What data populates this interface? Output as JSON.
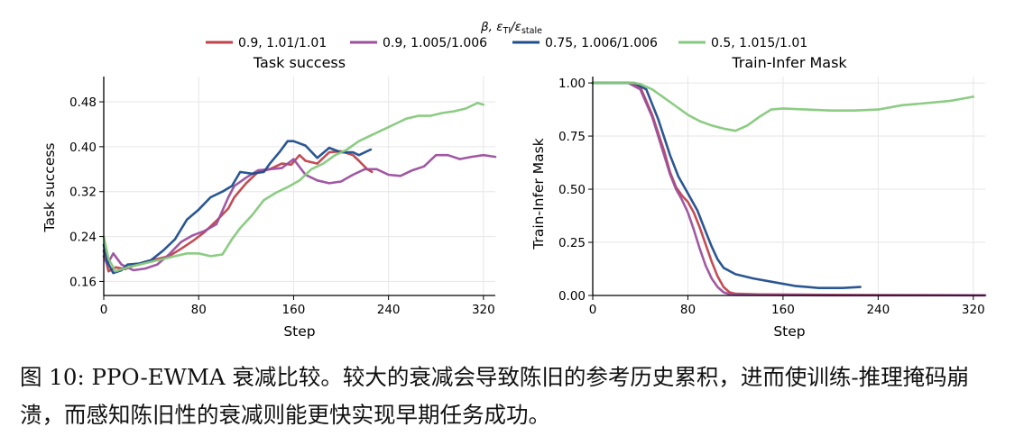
{
  "legend": {
    "title_parts": [
      "β,  ε",
      "TI",
      "/ε",
      "stale"
    ],
    "entries": [
      {
        "label": "0.9,  1.01/1.01",
        "color": "#c0424a"
      },
      {
        "label": "0.9,  1.005/1.006",
        "color": "#9b4f9d"
      },
      {
        "label": "0.75,  1.006/1.006",
        "color": "#1f4e8c"
      },
      {
        "label": "0.5,  1.015/1.01",
        "color": "#86c97c"
      }
    ]
  },
  "caption": "图 10: PPO-EWMA 衰减比较。较大的衰减会导致陈旧的参考历史累积，进而使训练-推理掩码崩溃，而感知陈旧性的衰减则能更快实现早期任务成功。",
  "chart_data": [
    {
      "type": "line",
      "title": "Task success",
      "xlabel": "Step",
      "ylabel": "Task success",
      "xlim": [
        0,
        330
      ],
      "ylim": [
        0.135,
        0.525
      ],
      "xticks": [
        "0",
        "80",
        "160",
        "240",
        "320"
      ],
      "xtick_values": [
        0,
        80,
        160,
        240,
        320
      ],
      "yticks": [
        "0.16",
        "0.24",
        "0.32",
        "0.40",
        "0.48"
      ],
      "ytick_values": [
        0.16,
        0.24,
        0.32,
        0.4,
        0.48
      ],
      "grid": true,
      "series": [
        {
          "name": "0.9,  1.01/1.01",
          "color": "#c0424a",
          "x": [
            0,
            4,
            10,
            18,
            25,
            35,
            45,
            55,
            65,
            75,
            85,
            95,
            105,
            110,
            120,
            130,
            140,
            150,
            158,
            165,
            170,
            180,
            190,
            200,
            210,
            215,
            222,
            226
          ],
          "y": [
            0.215,
            0.178,
            0.185,
            0.182,
            0.188,
            0.195,
            0.2,
            0.205,
            0.218,
            0.232,
            0.248,
            0.268,
            0.29,
            0.31,
            0.335,
            0.355,
            0.36,
            0.37,
            0.368,
            0.385,
            0.375,
            0.37,
            0.39,
            0.392,
            0.385,
            0.375,
            0.36,
            0.355
          ]
        },
        {
          "name": "0.9,  1.005/1.006",
          "color": "#9b4f9d",
          "x": [
            0,
            3,
            8,
            15,
            25,
            35,
            45,
            55,
            65,
            75,
            85,
            95,
            105,
            110,
            120,
            130,
            140,
            150,
            160,
            170,
            180,
            190,
            200,
            210,
            220,
            230,
            240,
            250,
            260,
            270,
            280,
            290,
            300,
            310,
            320,
            330
          ],
          "y": [
            0.205,
            0.19,
            0.21,
            0.19,
            0.18,
            0.183,
            0.19,
            0.208,
            0.23,
            0.242,
            0.25,
            0.262,
            0.31,
            0.33,
            0.345,
            0.358,
            0.36,
            0.362,
            0.378,
            0.35,
            0.34,
            0.335,
            0.338,
            0.35,
            0.36,
            0.36,
            0.35,
            0.348,
            0.358,
            0.365,
            0.385,
            0.385,
            0.378,
            0.382,
            0.385,
            0.382
          ]
        },
        {
          "name": "0.75,  1.006/1.006",
          "color": "#1f4e8c",
          "x": [
            0,
            3,
            8,
            15,
            20,
            30,
            40,
            50,
            60,
            70,
            80,
            90,
            100,
            108,
            115,
            125,
            135,
            140,
            148,
            155,
            160,
            170,
            180,
            190,
            200,
            210,
            215,
            225
          ],
          "y": [
            0.225,
            0.195,
            0.175,
            0.18,
            0.19,
            0.192,
            0.198,
            0.215,
            0.235,
            0.27,
            0.288,
            0.31,
            0.32,
            0.33,
            0.355,
            0.352,
            0.355,
            0.37,
            0.39,
            0.41,
            0.41,
            0.402,
            0.38,
            0.398,
            0.39,
            0.39,
            0.385,
            0.395
          ]
        },
        {
          "name": "0.5,  1.015/1.01",
          "color": "#86c97c",
          "x": [
            0,
            4,
            10,
            20,
            30,
            40,
            50,
            60,
            70,
            80,
            90,
            100,
            108,
            115,
            125,
            135,
            145,
            155,
            165,
            175,
            185,
            195,
            205,
            215,
            225,
            235,
            245,
            255,
            265,
            275,
            285,
            295,
            305,
            315,
            320
          ],
          "y": [
            0.24,
            0.2,
            0.178,
            0.185,
            0.19,
            0.195,
            0.2,
            0.205,
            0.21,
            0.21,
            0.205,
            0.208,
            0.235,
            0.255,
            0.278,
            0.305,
            0.318,
            0.328,
            0.34,
            0.36,
            0.37,
            0.385,
            0.395,
            0.41,
            0.42,
            0.43,
            0.44,
            0.45,
            0.455,
            0.455,
            0.46,
            0.463,
            0.468,
            0.478,
            0.475
          ]
        }
      ]
    },
    {
      "type": "line",
      "title": "Train-Infer Mask",
      "xlabel": "Step",
      "ylabel": "Train-Infer Mask",
      "xlim": [
        0,
        330
      ],
      "ylim": [
        0,
        1.03
      ],
      "xticks": [
        "0",
        "80",
        "160",
        "240",
        "320"
      ],
      "xtick_values": [
        0,
        80,
        160,
        240,
        320
      ],
      "yticks": [
        "0.00",
        "0.25",
        "0.50",
        "0.75",
        "1.00"
      ],
      "ytick_values": [
        0.0,
        0.25,
        0.5,
        0.75,
        1.0
      ],
      "grid": true,
      "series": [
        {
          "name": "0.9,  1.01/1.01",
          "color": "#c0424a",
          "x": [
            0,
            30,
            40,
            50,
            60,
            65,
            70,
            75,
            80,
            85,
            90,
            95,
            100,
            105,
            110,
            115,
            120,
            140,
            200,
            260,
            330
          ],
          "y": [
            1.0,
            1.0,
            0.98,
            0.85,
            0.68,
            0.58,
            0.51,
            0.47,
            0.44,
            0.39,
            0.32,
            0.24,
            0.16,
            0.09,
            0.04,
            0.015,
            0.008,
            0.005,
            0.003,
            0.002,
            0.001
          ]
        },
        {
          "name": "0.9,  1.005/1.006",
          "color": "#9b4f9d",
          "x": [
            0,
            30,
            40,
            50,
            60,
            65,
            70,
            75,
            80,
            85,
            90,
            95,
            100,
            105,
            110,
            115,
            120,
            140,
            200,
            330
          ],
          "y": [
            1.0,
            1.0,
            0.97,
            0.84,
            0.66,
            0.57,
            0.5,
            0.45,
            0.39,
            0.31,
            0.22,
            0.14,
            0.08,
            0.04,
            0.015,
            0.006,
            0.003,
            0.002,
            0.001,
            0.001
          ]
        },
        {
          "name": "0.75,  1.006/1.006",
          "color": "#1f4e8c",
          "x": [
            0,
            35,
            45,
            55,
            65,
            72,
            80,
            88,
            95,
            100,
            105,
            110,
            120,
            135,
            150,
            170,
            190,
            210,
            225
          ],
          "y": [
            1.0,
            1.0,
            0.97,
            0.83,
            0.66,
            0.56,
            0.48,
            0.4,
            0.3,
            0.23,
            0.17,
            0.13,
            0.1,
            0.08,
            0.065,
            0.045,
            0.035,
            0.035,
            0.04
          ]
        },
        {
          "name": "0.5,  1.015/1.01",
          "color": "#86c97c",
          "x": [
            0,
            35,
            40,
            50,
            60,
            70,
            80,
            90,
            100,
            110,
            120,
            130,
            140,
            150,
            160,
            180,
            200,
            220,
            240,
            260,
            280,
            300,
            320
          ],
          "y": [
            1.0,
            1.0,
            0.995,
            0.97,
            0.93,
            0.89,
            0.85,
            0.82,
            0.8,
            0.785,
            0.775,
            0.8,
            0.84,
            0.875,
            0.88,
            0.875,
            0.87,
            0.87,
            0.875,
            0.895,
            0.905,
            0.915,
            0.935
          ]
        }
      ]
    }
  ]
}
